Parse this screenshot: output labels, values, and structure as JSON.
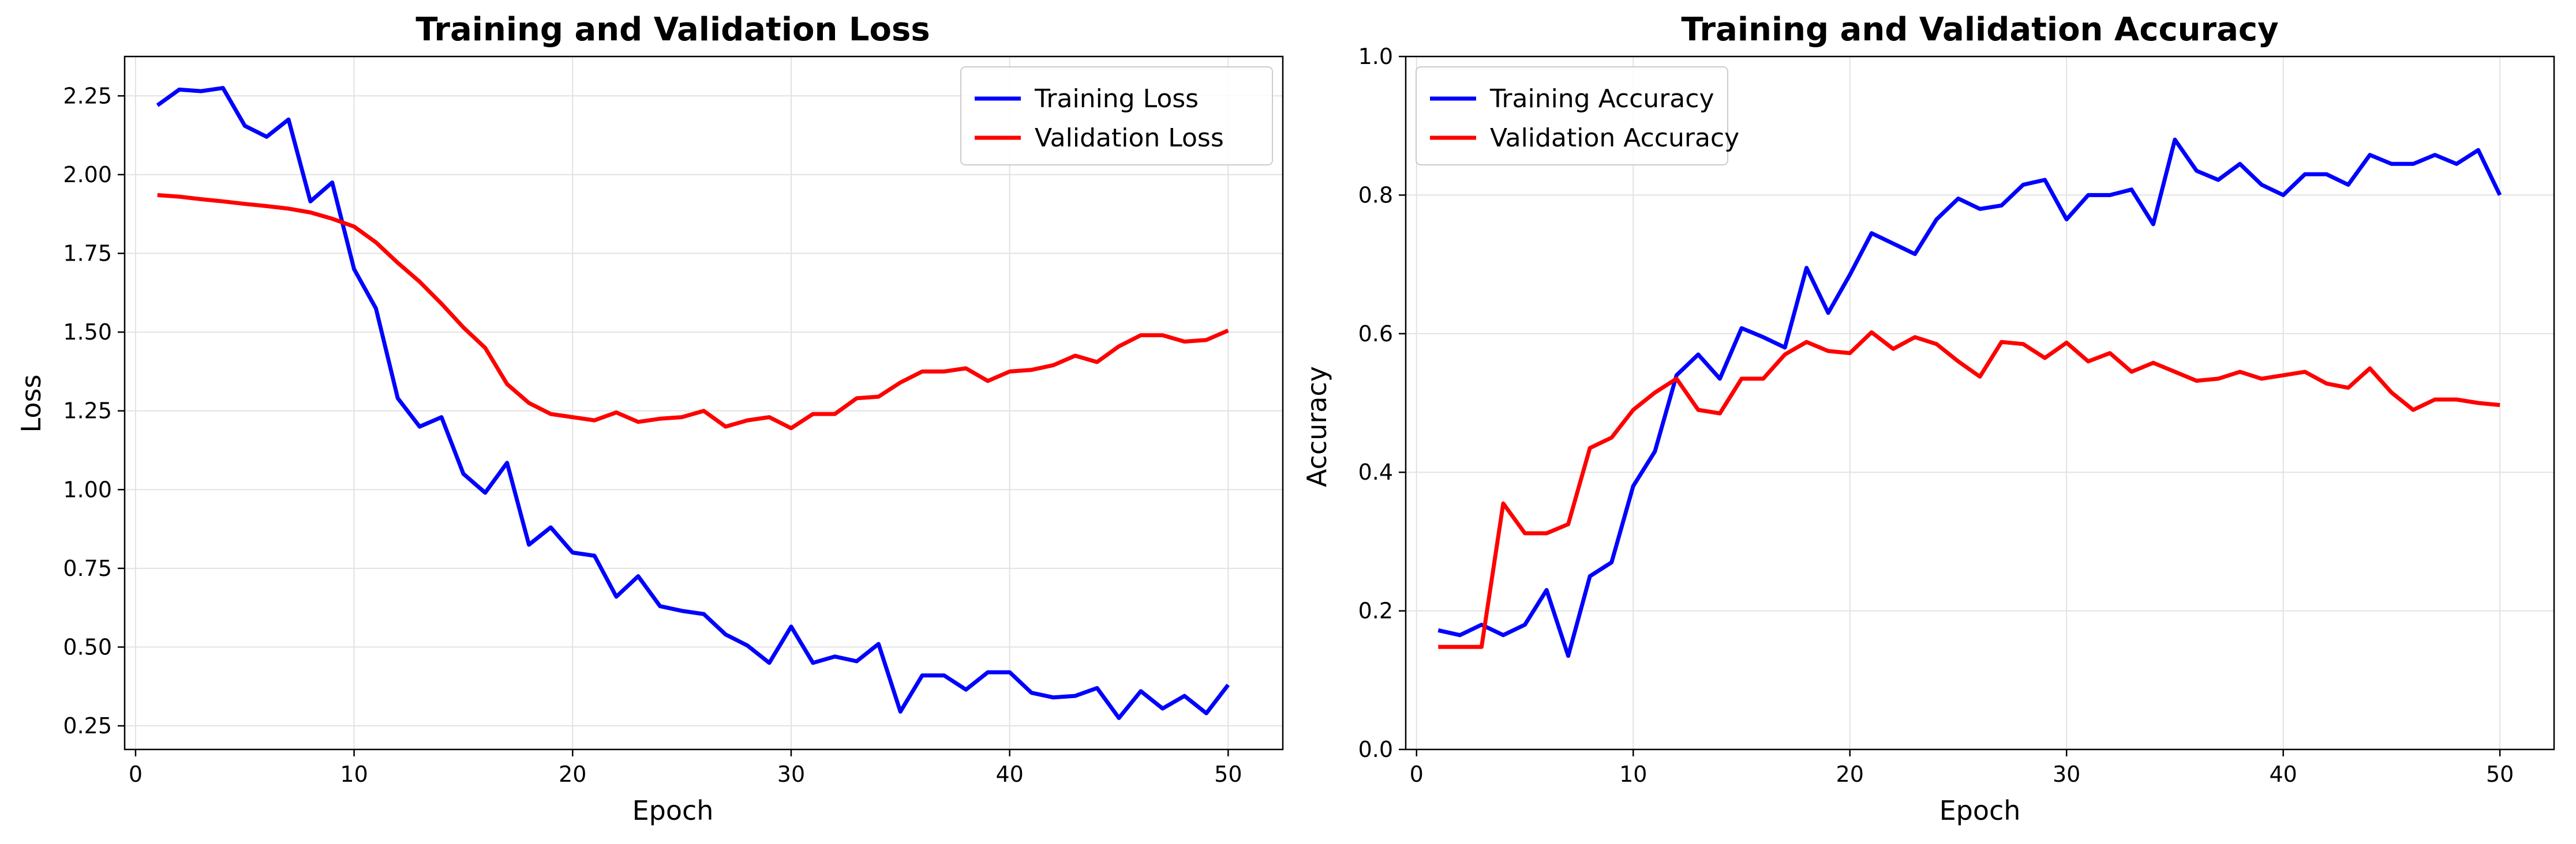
{
  "chart_data": [
    {
      "type": "line",
      "title": "Training and Validation Loss",
      "xlabel": "Epoch",
      "ylabel": "Loss",
      "xlim": [
        -0.5,
        52.5
      ],
      "ylim": [
        0.175,
        2.375
      ],
      "xticks": [
        0,
        10,
        20,
        30,
        40,
        50
      ],
      "xtick_labels": [
        "0",
        "10",
        "20",
        "30",
        "40",
        "50"
      ],
      "yticks": [
        0.25,
        0.5,
        0.75,
        1.0,
        1.25,
        1.5,
        1.75,
        2.0,
        2.25
      ],
      "ytick_labels": [
        "0.25",
        "0.50",
        "0.75",
        "1.00",
        "1.25",
        "1.50",
        "1.75",
        "2.00",
        "2.25"
      ],
      "grid": true,
      "legend_position": "upper right",
      "x": [
        1,
        2,
        3,
        4,
        5,
        6,
        7,
        8,
        9,
        10,
        11,
        12,
        13,
        14,
        15,
        16,
        17,
        18,
        19,
        20,
        21,
        22,
        23,
        24,
        25,
        26,
        27,
        28,
        29,
        30,
        31,
        32,
        33,
        34,
        35,
        36,
        37,
        38,
        39,
        40,
        41,
        42,
        43,
        44,
        45,
        46,
        47,
        48,
        49,
        50
      ],
      "series": [
        {
          "name": "Training Loss",
          "color": "#0000ff",
          "values": [
            2.22,
            2.27,
            2.265,
            2.275,
            2.155,
            2.12,
            2.175,
            1.915,
            1.975,
            1.7,
            1.575,
            1.29,
            1.2,
            1.23,
            1.05,
            0.99,
            1.085,
            0.825,
            0.88,
            0.8,
            0.79,
            0.66,
            0.725,
            0.63,
            0.615,
            0.605,
            0.54,
            0.505,
            0.45,
            0.565,
            0.45,
            0.47,
            0.455,
            0.51,
            0.295,
            0.41,
            0.41,
            0.365,
            0.42,
            0.42,
            0.355,
            0.34,
            0.345,
            0.37,
            0.275,
            0.36,
            0.305,
            0.345,
            0.29,
            0.38
          ]
        },
        {
          "name": "Validation Loss",
          "color": "#ff0000",
          "values": [
            1.935,
            1.93,
            1.922,
            1.915,
            1.907,
            1.9,
            1.892,
            1.88,
            1.86,
            1.835,
            1.785,
            1.72,
            1.66,
            1.59,
            1.515,
            1.45,
            1.335,
            1.275,
            1.24,
            1.23,
            1.22,
            1.245,
            1.215,
            1.225,
            1.23,
            1.25,
            1.2,
            1.22,
            1.23,
            1.195,
            1.24,
            1.24,
            1.29,
            1.295,
            1.34,
            1.375,
            1.375,
            1.385,
            1.345,
            1.375,
            1.38,
            1.395,
            1.425,
            1.405,
            1.455,
            1.49,
            1.49,
            1.47,
            1.475,
            1.505
          ]
        }
      ]
    },
    {
      "type": "line",
      "title": "Training and Validation Accuracy",
      "xlabel": "Epoch",
      "ylabel": "Accuracy",
      "xlim": [
        -0.5,
        52.5
      ],
      "ylim": [
        0.0,
        1.0
      ],
      "xticks": [
        0,
        10,
        20,
        30,
        40,
        50
      ],
      "xtick_labels": [
        "0",
        "10",
        "20",
        "30",
        "40",
        "50"
      ],
      "yticks": [
        0.0,
        0.2,
        0.4,
        0.6,
        0.8,
        1.0
      ],
      "ytick_labels": [
        "0.0",
        "0.2",
        "0.4",
        "0.6",
        "0.8",
        "1.0"
      ],
      "grid": true,
      "legend_position": "upper left",
      "x": [
        1,
        2,
        3,
        4,
        5,
        6,
        7,
        8,
        9,
        10,
        11,
        12,
        13,
        14,
        15,
        16,
        17,
        18,
        19,
        20,
        21,
        22,
        23,
        24,
        25,
        26,
        27,
        28,
        29,
        30,
        31,
        32,
        33,
        34,
        35,
        36,
        37,
        38,
        39,
        40,
        41,
        42,
        43,
        44,
        45,
        46,
        47,
        48,
        49,
        50
      ],
      "series": [
        {
          "name": "Training Accuracy",
          "color": "#0000ff",
          "values": [
            0.172,
            0.165,
            0.18,
            0.165,
            0.18,
            0.23,
            0.135,
            0.25,
            0.27,
            0.38,
            0.43,
            0.54,
            0.57,
            0.535,
            0.608,
            0.595,
            0.58,
            0.695,
            0.63,
            0.685,
            0.745,
            0.73,
            0.715,
            0.765,
            0.795,
            0.78,
            0.785,
            0.815,
            0.822,
            0.765,
            0.8,
            0.8,
            0.808,
            0.758,
            0.88,
            0.835,
            0.822,
            0.845,
            0.815,
            0.8,
            0.83,
            0.83,
            0.815,
            0.858,
            0.845,
            0.845,
            0.858,
            0.845,
            0.865,
            0.8
          ]
        },
        {
          "name": "Validation Accuracy",
          "color": "#ff0000",
          "values": [
            0.148,
            0.148,
            0.148,
            0.355,
            0.312,
            0.312,
            0.325,
            0.435,
            0.45,
            0.49,
            0.515,
            0.535,
            0.49,
            0.485,
            0.535,
            0.535,
            0.57,
            0.588,
            0.575,
            0.572,
            0.602,
            0.578,
            0.595,
            0.585,
            0.56,
            0.538,
            0.588,
            0.585,
            0.565,
            0.587,
            0.56,
            0.572,
            0.545,
            0.558,
            0.545,
            0.532,
            0.535,
            0.545,
            0.535,
            0.54,
            0.545,
            0.528,
            0.522,
            0.55,
            0.515,
            0.49,
            0.505,
            0.505,
            0.5,
            0.497
          ]
        }
      ]
    }
  ]
}
